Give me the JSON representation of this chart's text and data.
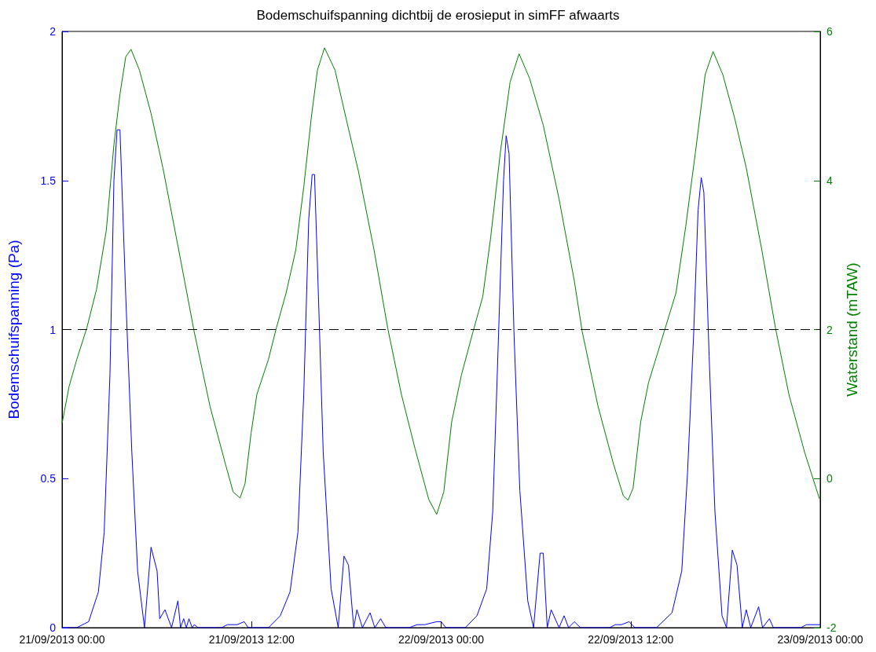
{
  "chart_data": {
    "type": "line",
    "title": "Bodemschuifspanning dichtbij de erosieput in simFF afwaarts",
    "ylabel": "Bodemschuifspanning (Pa)",
    "y2label": "Waterstand (mTAW)",
    "xlim": [
      "2013-09-21T00:00",
      "2013-09-23T00:00"
    ],
    "xticks": [
      {
        "value": "2013-09-21T00:00",
        "label": "21/09/2013 00:00"
      },
      {
        "value": "2013-09-21T12:00",
        "label": "21/09/2013 12:00"
      },
      {
        "value": "2013-09-22T00:00",
        "label": "22/09/2013 00:00"
      },
      {
        "value": "2013-09-22T12:00",
        "label": "22/09/2013 12:00"
      },
      {
        "value": "2013-09-23T00:00",
        "label": "23/09/2013 00:00"
      }
    ],
    "ylim": [
      0,
      2
    ],
    "yticks": [
      0,
      0.5,
      1,
      1.5,
      2
    ],
    "y2lim": [
      -2,
      6
    ],
    "y2ticks": [
      -2,
      0,
      2,
      4,
      6
    ],
    "grid": false,
    "marker": "none",
    "line_style": "solid",
    "ref_lines": [
      {
        "axis": "y",
        "value": 1,
        "color": "#000000",
        "line_style": "dashed"
      }
    ],
    "series": [
      {
        "color": "#0000ff",
        "x": [
          "2013-09-21T00:00",
          "2013-09-21T00:56",
          "2013-09-21T01:41",
          "2013-09-21T02:18",
          "2013-09-21T02:40",
          "2013-09-21T03:02",
          "2013-09-21T03:17",
          "2013-09-21T03:29",
          "2013-09-21T03:40",
          "2013-09-21T04:02",
          "2013-09-21T04:25",
          "2013-09-21T04:47",
          "2013-09-21T05:13",
          "2013-09-21T05:38",
          "2013-09-21T06:01",
          "2013-09-21T06:11",
          "2013-09-21T06:31",
          "2013-09-21T06:56",
          "2013-09-21T07:20",
          "2013-09-21T07:30",
          "2013-09-21T07:42",
          "2013-09-21T07:52",
          "2013-09-21T08:02",
          "2013-09-21T08:14",
          "2013-09-21T08:22",
          "2013-09-21T08:37",
          "2013-09-21T10:06",
          "2013-09-21T10:28",
          "2013-09-21T11:05",
          "2013-09-21T11:32",
          "2013-09-21T11:47",
          "2013-09-21T13:04",
          "2013-09-21T13:49",
          "2013-09-21T14:26",
          "2013-09-21T14:56",
          "2013-09-21T15:18",
          "2013-09-21T15:37",
          "2013-09-21T15:50",
          "2013-09-21T15:59",
          "2013-09-21T16:14",
          "2013-09-21T16:32",
          "2013-09-21T17:02",
          "2013-09-21T17:29",
          "2013-09-21T17:51",
          "2013-09-21T18:08",
          "2013-09-21T18:28",
          "2013-09-21T18:40",
          "2013-09-21T19:01",
          "2013-09-21T19:30",
          "2013-09-21T19:48",
          "2013-09-21T20:10",
          "2013-09-21T20:30",
          "2013-09-21T21:59",
          "2013-09-21T22:29",
          "2013-09-21T22:58",
          "2013-09-21T23:43",
          "2013-09-22T00:00",
          "2013-09-22T00:18",
          "2013-09-22T01:32",
          "2013-09-22T02:16",
          "2013-09-22T02:53",
          "2013-09-22T03:16",
          "2013-09-22T03:38",
          "2013-09-22T03:57",
          "2013-09-22T04:07",
          "2013-09-22T04:18",
          "2013-09-22T04:37",
          "2013-09-22T04:59",
          "2013-09-22T05:29",
          "2013-09-22T05:51",
          "2013-09-22T06:16",
          "2013-09-22T06:28",
          "2013-09-22T06:43",
          "2013-09-22T06:58",
          "2013-09-22T07:28",
          "2013-09-22T07:47",
          "2013-09-22T08:04",
          "2013-09-22T08:26",
          "2013-09-22T08:49",
          "2013-09-22T10:40",
          "2013-09-22T11:02",
          "2013-09-22T11:25",
          "2013-09-22T11:54",
          "2013-09-22T12:16",
          "2013-09-22T13:38",
          "2013-09-22T14:37",
          "2013-09-22T15:14",
          "2013-09-22T15:36",
          "2013-09-22T15:59",
          "2013-09-22T16:16",
          "2013-09-22T16:28",
          "2013-09-22T16:38",
          "2013-09-22T16:58",
          "2013-09-22T17:20",
          "2013-09-22T17:47",
          "2013-09-22T18:04",
          "2013-09-22T18:26",
          "2013-09-22T18:44",
          "2013-09-22T19:04",
          "2013-09-22T19:19",
          "2013-09-22T19:36",
          "2013-09-22T20:06",
          "2013-09-22T20:21",
          "2013-09-22T20:47",
          "2013-09-22T21:02",
          "2013-09-22T22:46",
          "2013-09-22T23:08",
          "2013-09-22T23:45",
          "2013-09-23T00:00"
        ],
        "values": [
          0,
          0,
          0.02,
          0.12,
          0.32,
          0.85,
          1.5,
          1.67,
          1.67,
          1.11,
          0.59,
          0.19,
          0,
          0.27,
          0.19,
          0.03,
          0.06,
          0,
          0.09,
          0,
          0.03,
          0,
          0.03,
          0,
          0.01,
          0,
          0,
          0.01,
          0.01,
          0.02,
          0,
          0,
          0.04,
          0.12,
          0.32,
          0.78,
          1.37,
          1.52,
          1.52,
          1.11,
          0.59,
          0.13,
          0,
          0.24,
          0.21,
          0,
          0.06,
          0,
          0.05,
          0,
          0.03,
          0,
          0,
          0.01,
          0.01,
          0.02,
          0.02,
          0,
          0,
          0.04,
          0.13,
          0.39,
          0.98,
          1.5,
          1.65,
          1.59,
          0.98,
          0.46,
          0.09,
          0,
          0.25,
          0.25,
          0,
          0.06,
          0,
          0.04,
          0,
          0.02,
          0,
          0,
          0.01,
          0.01,
          0.02,
          0,
          0,
          0.05,
          0.19,
          0.52,
          0.98,
          1.4,
          1.51,
          1.46,
          0.91,
          0.39,
          0.04,
          0,
          0.26,
          0.21,
          0,
          0.06,
          0,
          0.07,
          0,
          0.03,
          0,
          0,
          0.01,
          0.01,
          0.01
        ]
      },
      {
        "color": "#008000",
        "axis": "y2",
        "x": [
          "2013-09-21T00:00",
          "2013-09-21T00:27",
          "2013-09-21T00:56",
          "2013-09-21T01:34",
          "2013-09-21T02:11",
          "2013-09-21T02:48",
          "2013-09-21T03:17",
          "2013-09-21T03:40",
          "2013-09-21T04:02",
          "2013-09-21T04:22",
          "2013-09-21T04:54",
          "2013-09-21T05:38",
          "2013-09-21T06:23",
          "2013-09-21T07:23",
          "2013-09-21T08:22",
          "2013-09-21T09:22",
          "2013-09-21T10:21",
          "2013-09-21T10:50",
          "2013-09-21T11:16",
          "2013-09-21T11:35",
          "2013-09-21T11:58",
          "2013-09-21T12:20",
          "2013-09-21T13:04",
          "2013-09-21T13:34",
          "2013-09-21T14:11",
          "2013-09-21T14:48",
          "2013-09-21T15:18",
          "2013-09-21T15:47",
          "2013-09-21T16:10",
          "2013-09-21T16:37",
          "2013-09-21T17:17",
          "2013-09-21T18:01",
          "2013-09-21T18:46",
          "2013-09-21T19:45",
          "2013-09-21T20:37",
          "2013-09-21T21:29",
          "2013-09-21T22:21",
          "2013-09-21T23:13",
          "2013-09-21T23:43",
          "2013-09-22T00:10",
          "2013-09-22T00:40",
          "2013-09-22T01:17",
          "2013-09-22T02:01",
          "2013-09-22T02:38",
          "2013-09-22T03:08",
          "2013-09-22T03:45",
          "2013-09-22T04:22",
          "2013-09-22T04:56",
          "2013-09-22T05:36",
          "2013-09-22T06:28",
          "2013-09-22T07:28",
          "2013-09-22T08:26",
          "2013-09-22T08:56",
          "2013-09-22T09:56",
          "2013-09-22T10:55",
          "2013-09-22T11:32",
          "2013-09-22T11:50",
          "2013-09-22T12:09",
          "2013-09-22T12:38",
          "2013-09-22T13:08",
          "2013-09-22T14:07",
          "2013-09-22T14:52",
          "2013-09-22T15:29",
          "2013-09-22T16:06",
          "2013-09-22T16:43",
          "2013-09-22T17:13",
          "2013-09-22T17:50",
          "2013-09-22T18:34",
          "2013-09-22T19:19",
          "2013-09-22T20:18",
          "2013-09-22T21:10",
          "2013-09-22T22:01",
          "2013-09-22T23:01",
          "2013-09-22T23:57"
        ],
        "values": [
          0.74,
          1.24,
          1.6,
          2.02,
          2.54,
          3.33,
          4.48,
          5.16,
          5.66,
          5.76,
          5.48,
          4.9,
          4.17,
          3.07,
          1.97,
          0.97,
          0.19,
          -0.18,
          -0.26,
          -0.07,
          0.61,
          1.13,
          1.6,
          2.02,
          2.49,
          3.07,
          3.91,
          4.85,
          5.48,
          5.78,
          5.48,
          4.8,
          4.12,
          3.07,
          2.02,
          1.13,
          0.4,
          -0.28,
          -0.48,
          -0.18,
          0.76,
          1.39,
          1.97,
          2.44,
          3.23,
          4.38,
          5.32,
          5.7,
          5.37,
          4.74,
          3.75,
          2.65,
          1.97,
          0.97,
          0.19,
          -0.23,
          -0.29,
          -0.13,
          0.76,
          1.29,
          1.97,
          2.49,
          3.38,
          4.38,
          5.42,
          5.73,
          5.42,
          4.85,
          4.17,
          3.07,
          2.02,
          1.13,
          0.35,
          -0.27
        ]
      }
    ]
  }
}
